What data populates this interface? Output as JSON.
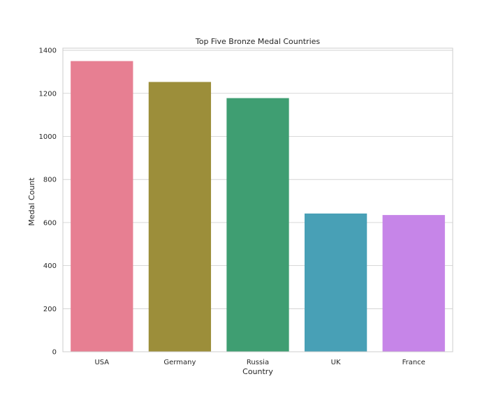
{
  "chart_data": {
    "type": "bar",
    "title": "Top Five Bronze Medal Countries",
    "xlabel": "Country",
    "ylabel": "Medal Count",
    "categories": [
      "USA",
      "Germany",
      "Russia",
      "UK",
      "France"
    ],
    "values": [
      1350,
      1253,
      1178,
      642,
      635
    ],
    "colors": [
      "#e77f92",
      "#9c8e3a",
      "#3f9e72",
      "#48a0b6",
      "#c685e8"
    ],
    "ylim": [
      0,
      1410
    ],
    "yticks": [
      0,
      200,
      400,
      600,
      800,
      1000,
      1200,
      1400
    ],
    "grid": true,
    "legend": "none"
  }
}
